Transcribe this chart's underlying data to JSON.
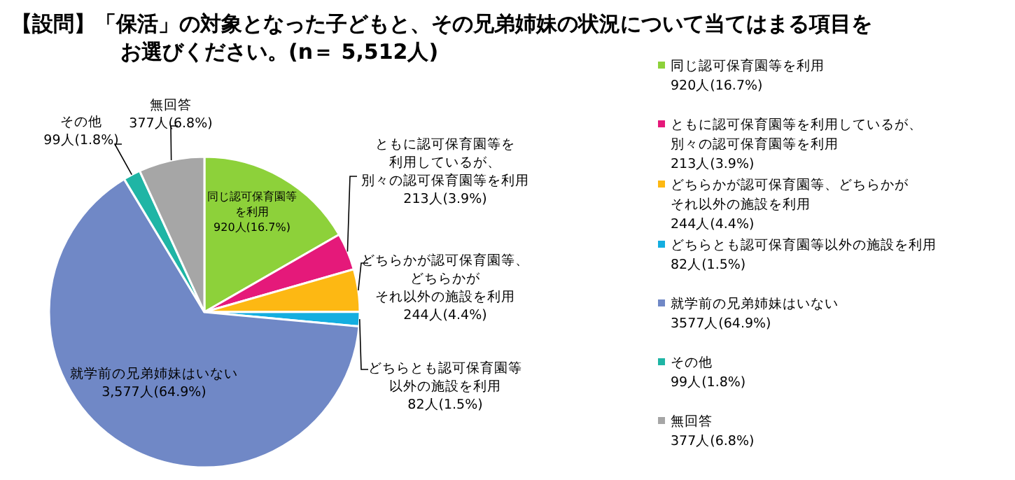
{
  "chart_data": {
    "type": "pie",
    "title": "【設問】「保活」の対象となった子どもと、その兄弟姉妹の状況について当てはまる項目をお選びください。(n＝ 5,512人)",
    "categories": [
      "同じ認可保育園等を利用920人(16.7%)",
      "ともに認可保育園等を利用しているが、別々の認可保育園等を利用213人(3.9%)",
      "どちらかが認可保育園等、どちらかがそれ以外の施設を利用244人(4.4%)",
      "どちらとも認可保育園等以外の施設を利用82人(1.5%)",
      "就学前の兄弟姉妹はいない3577人(64.9%)",
      "その他99人(1.8%)",
      "無回答377人(6.8%)"
    ],
    "values": [
      920,
      213,
      244,
      82,
      3577,
      99,
      377
    ],
    "value_labels": [
      "同じ認可保育園等を利用920人(16.7%)",
      "ともに認可保育園等を利用しているが、別々の認可保育園等を利用213人(3.9%)",
      "どちらかが認可保育園等、どちらかがそれ以外の施設を利用244人(4.4%)",
      "どちらとも認可保育園等以外の施設を利用82人(1.5%)",
      "就学前の兄弟姉妹はいない3,577人(64.9%)",
      "その他99人(1.8%)",
      "無回答377人(6.8%)"
    ],
    "colors": [
      "#8dd13a",
      "#e5197a",
      "#fdb813",
      "#14aee0",
      "#7088c6",
      "#1fb5a5",
      "#a6a6a6"
    ],
    "legend": "right"
  }
}
